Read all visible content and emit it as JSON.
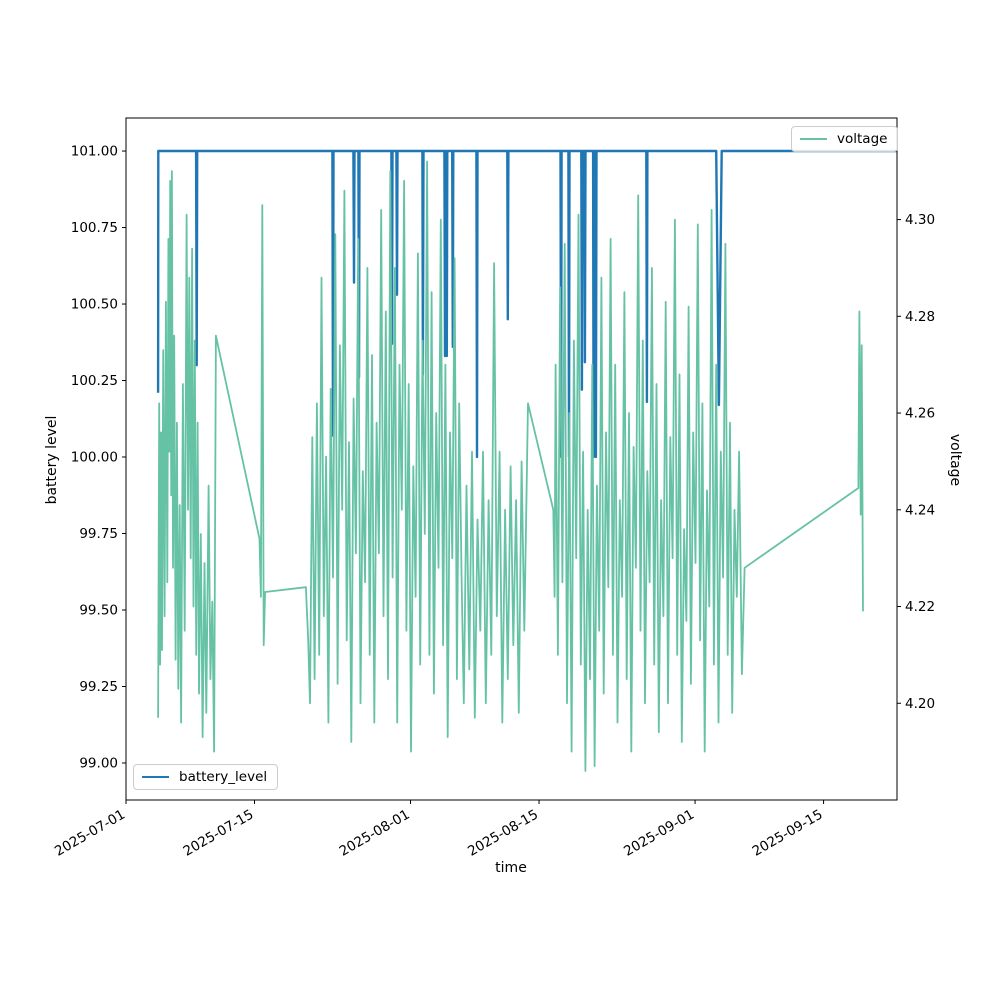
{
  "figure": {
    "background": "#ffffff"
  },
  "chart_data": {
    "type": "line",
    "title": "",
    "x_axis": {
      "label": "time",
      "unit": "days since 2025-07-01",
      "tick_positions": [
        0,
        14,
        31,
        45,
        62,
        76
      ],
      "tick_labels": [
        "2025-07-01",
        "2025-07-15",
        "2025-08-01",
        "2025-08-15",
        "2025-09-01",
        "2025-09-15"
      ],
      "range": [
        0,
        84
      ],
      "grid": false
    },
    "y_axis_left": {
      "label": "battery level",
      "tick_labels": [
        "99.00",
        "99.25",
        "99.50",
        "99.75",
        "100.00",
        "100.25",
        "100.50",
        "100.75",
        "101.00"
      ],
      "tick_values": [
        99.0,
        99.25,
        99.5,
        99.75,
        100.0,
        100.25,
        100.5,
        100.75,
        101.0
      ],
      "range": [
        98.879,
        101.108
      ]
    },
    "y_axis_right": {
      "label": "voltage",
      "tick_labels": [
        "4.20",
        "4.22",
        "4.24",
        "4.26",
        "4.28",
        "4.30"
      ],
      "tick_values": [
        4.2,
        4.22,
        4.24,
        4.26,
        4.28,
        4.3
      ],
      "range": [
        4.18,
        4.321
      ]
    },
    "series": [
      {
        "name": "battery_level",
        "color": "#1f77b4",
        "axis": "left",
        "line_width": 2.4,
        "legend_position": "lower-left",
        "points": [
          [
            3.5,
            100.21
          ],
          [
            3.52,
            101
          ],
          [
            7.64,
            101
          ],
          [
            7.7,
            100.3
          ],
          [
            7.76,
            101
          ],
          [
            22.49,
            101
          ],
          [
            22.55,
            100.07
          ],
          [
            22.61,
            101
          ],
          [
            24.78,
            101
          ],
          [
            24.84,
            100.57
          ],
          [
            24.9,
            101
          ],
          [
            25.32,
            101
          ],
          [
            25.38,
            100.26
          ],
          [
            25.44,
            101
          ],
          [
            28.92,
            101
          ],
          [
            28.98,
            100.37
          ],
          [
            29.04,
            101
          ],
          [
            29.46,
            101
          ],
          [
            29.52,
            100.53
          ],
          [
            29.58,
            101
          ],
          [
            32.29,
            101
          ],
          [
            32.35,
            100.27
          ],
          [
            32.41,
            101
          ],
          [
            34.69,
            101
          ],
          [
            34.75,
            100.33
          ],
          [
            34.81,
            101
          ],
          [
            34.89,
            101
          ],
          [
            34.95,
            100.33
          ],
          [
            35.01,
            101
          ],
          [
            35.54,
            101
          ],
          [
            35.6,
            100.36
          ],
          [
            35.66,
            101
          ],
          [
            38.18,
            101
          ],
          [
            38.24,
            100.0
          ],
          [
            38.3,
            101
          ],
          [
            41.54,
            101
          ],
          [
            41.6,
            100.45
          ],
          [
            41.66,
            101
          ],
          [
            47.34,
            101
          ],
          [
            47.4,
            100.0
          ],
          [
            47.46,
            101
          ],
          [
            48.2,
            101
          ],
          [
            48.26,
            100.0
          ],
          [
            48.32,
            101
          ],
          [
            49.61,
            101
          ],
          [
            49.67,
            100.22
          ],
          [
            49.73,
            101
          ],
          [
            49.94,
            101
          ],
          [
            50.0,
            100.31
          ],
          [
            50.06,
            101
          ],
          [
            50.89,
            101
          ],
          [
            50.95,
            100.0
          ],
          [
            51.01,
            101
          ],
          [
            51.14,
            101
          ],
          [
            51.2,
            100.0
          ],
          [
            51.26,
            101
          ],
          [
            56.69,
            101
          ],
          [
            56.75,
            100.18
          ],
          [
            56.81,
            101
          ],
          [
            64.3,
            101
          ],
          [
            64.6,
            100.17
          ],
          [
            64.9,
            101
          ],
          [
            84,
            101
          ]
        ]
      },
      {
        "name": "voltage",
        "color": "#66c2a5",
        "axis": "right",
        "line_width": 1.8,
        "legend_position": "upper-right",
        "points": [
          [
            3.5,
            4.197
          ],
          [
            3.62,
            4.262
          ],
          [
            3.72,
            4.208
          ],
          [
            3.82,
            4.256
          ],
          [
            3.92,
            4.211
          ],
          [
            4.05,
            4.273
          ],
          [
            4.2,
            4.218
          ],
          [
            4.35,
            4.283
          ],
          [
            4.5,
            4.225
          ],
          [
            4.62,
            4.296
          ],
          [
            4.72,
            4.252
          ],
          [
            4.82,
            4.308
          ],
          [
            4.92,
            4.243
          ],
          [
            5.0,
            4.31
          ],
          [
            5.12,
            4.228
          ],
          [
            5.25,
            4.276
          ],
          [
            5.4,
            4.209
          ],
          [
            5.55,
            4.258
          ],
          [
            5.7,
            4.203
          ],
          [
            5.85,
            4.241
          ],
          [
            6.0,
            4.196
          ],
          [
            6.2,
            4.266
          ],
          [
            6.4,
            4.215
          ],
          [
            6.6,
            4.301
          ],
          [
            6.75,
            4.24
          ],
          [
            6.9,
            4.288
          ],
          [
            7.05,
            4.23
          ],
          [
            7.2,
            4.294
          ],
          [
            7.35,
            4.22
          ],
          [
            7.5,
            4.275
          ],
          [
            7.65,
            4.21
          ],
          [
            7.8,
            4.258
          ],
          [
            7.95,
            4.202
          ],
          [
            8.15,
            4.235
          ],
          [
            8.35,
            4.193
          ],
          [
            8.55,
            4.229
          ],
          [
            8.75,
            4.198
          ],
          [
            9.0,
            4.245
          ],
          [
            9.2,
            4.205
          ],
          [
            9.4,
            4.221
          ],
          [
            9.6,
            4.19
          ],
          [
            9.8,
            4.276
          ],
          [
            14.55,
            4.234
          ],
          [
            14.7,
            4.222
          ],
          [
            14.85,
            4.303
          ],
          [
            15.0,
            4.212
          ],
          [
            15.15,
            4.223
          ],
          [
            19.6,
            4.224
          ],
          [
            19.85,
            4.213
          ],
          [
            20.05,
            4.2
          ],
          [
            20.3,
            4.255
          ],
          [
            20.55,
            4.205
          ],
          [
            20.8,
            4.262
          ],
          [
            21.05,
            4.21
          ],
          [
            21.3,
            4.288
          ],
          [
            21.55,
            4.218
          ],
          [
            21.8,
            4.251
          ],
          [
            22.05,
            4.196
          ],
          [
            22.3,
            4.265
          ],
          [
            22.55,
            4.226
          ],
          [
            22.8,
            4.297
          ],
          [
            23.05,
            4.204
          ],
          [
            23.3,
            4.274
          ],
          [
            23.55,
            4.24
          ],
          [
            23.8,
            4.306
          ],
          [
            24.05,
            4.213
          ],
          [
            24.3,
            4.254
          ],
          [
            24.55,
            4.192
          ],
          [
            24.8,
            4.263
          ],
          [
            25.05,
            4.231
          ],
          [
            25.3,
            4.296
          ],
          [
            25.55,
            4.2
          ],
          [
            25.8,
            4.248
          ],
          [
            26.05,
            4.225
          ],
          [
            26.3,
            4.29
          ],
          [
            26.55,
            4.21
          ],
          [
            26.8,
            4.272
          ],
          [
            27.05,
            4.196
          ],
          [
            27.3,
            4.258
          ],
          [
            27.55,
            4.231
          ],
          [
            27.8,
            4.302
          ],
          [
            28.05,
            4.218
          ],
          [
            28.3,
            4.281
          ],
          [
            28.55,
            4.205
          ],
          [
            28.8,
            4.31
          ],
          [
            29.05,
            4.226
          ],
          [
            29.3,
            4.29
          ],
          [
            29.55,
            4.196
          ],
          [
            29.8,
            4.27
          ],
          [
            30.05,
            4.24
          ],
          [
            30.3,
            4.308
          ],
          [
            30.55,
            4.215
          ],
          [
            30.8,
            4.266
          ],
          [
            31.05,
            4.19
          ],
          [
            31.3,
            4.249
          ],
          [
            31.55,
            4.222
          ],
          [
            31.8,
            4.293
          ],
          [
            32.05,
            4.208
          ],
          [
            32.3,
            4.275
          ],
          [
            32.55,
            4.235
          ],
          [
            32.8,
            4.312
          ],
          [
            33.05,
            4.21
          ],
          [
            33.3,
            4.285
          ],
          [
            33.55,
            4.202
          ],
          [
            33.8,
            4.26
          ],
          [
            34.05,
            4.228
          ],
          [
            34.3,
            4.3
          ],
          [
            34.55,
            4.212
          ],
          [
            34.8,
            4.27
          ],
          [
            35.05,
            4.193
          ],
          [
            35.3,
            4.256
          ],
          [
            35.55,
            4.23
          ],
          [
            35.8,
            4.292
          ],
          [
            36.05,
            4.205
          ],
          [
            36.3,
            4.262
          ],
          [
            36.55,
            4.227
          ],
          [
            36.8,
            4.2
          ],
          [
            37.1,
            4.245
          ],
          [
            37.4,
            4.207
          ],
          [
            37.7,
            4.252
          ],
          [
            38.0,
            4.197
          ],
          [
            38.3,
            4.238
          ],
          [
            38.6,
            4.215
          ],
          [
            38.9,
            4.252
          ],
          [
            39.2,
            4.2
          ],
          [
            39.5,
            4.242
          ],
          [
            39.8,
            4.21
          ],
          [
            40.1,
            4.291
          ],
          [
            40.4,
            4.218
          ],
          [
            40.7,
            4.252
          ],
          [
            41.0,
            4.196
          ],
          [
            41.3,
            4.24
          ],
          [
            41.6,
            4.205
          ],
          [
            41.9,
            4.249
          ],
          [
            42.2,
            4.212
          ],
          [
            42.5,
            4.242
          ],
          [
            42.8,
            4.198
          ],
          [
            43.1,
            4.25
          ],
          [
            43.4,
            4.215
          ],
          [
            43.8,
            4.262
          ],
          [
            46.55,
            4.24
          ],
          [
            46.7,
            4.222
          ],
          [
            46.8,
            4.27
          ],
          [
            47.05,
            4.21
          ],
          [
            47.3,
            4.286
          ],
          [
            47.55,
            4.225
          ],
          [
            47.8,
            4.295
          ],
          [
            48.05,
            4.2
          ],
          [
            48.3,
            4.26
          ],
          [
            48.55,
            4.19
          ],
          [
            48.8,
            4.275
          ],
          [
            49.05,
            4.23
          ],
          [
            49.3,
            4.301
          ],
          [
            49.55,
            4.208
          ],
          [
            49.8,
            4.252
          ],
          [
            50.05,
            4.186
          ],
          [
            50.3,
            4.24
          ],
          [
            50.55,
            4.205
          ],
          [
            50.8,
            4.27
          ],
          [
            51.05,
            4.187
          ],
          [
            51.3,
            4.245
          ],
          [
            51.55,
            4.215
          ],
          [
            51.8,
            4.288
          ],
          [
            52.05,
            4.202
          ],
          [
            52.3,
            4.256
          ],
          [
            52.55,
            4.224
          ],
          [
            52.8,
            4.296
          ],
          [
            53.05,
            4.21
          ],
          [
            53.3,
            4.27
          ],
          [
            53.55,
            4.196
          ],
          [
            53.8,
            4.242
          ],
          [
            54.05,
            4.222
          ],
          [
            54.3,
            4.285
          ],
          [
            54.55,
            4.205
          ],
          [
            54.8,
            4.26
          ],
          [
            55.05,
            4.19
          ],
          [
            55.3,
            4.253
          ],
          [
            55.55,
            4.228
          ],
          [
            55.8,
            4.305
          ],
          [
            56.05,
            4.215
          ],
          [
            56.3,
            4.275
          ],
          [
            56.55,
            4.2
          ],
          [
            56.8,
            4.248
          ],
          [
            57.05,
            4.225
          ],
          [
            57.3,
            4.29
          ],
          [
            57.55,
            4.208
          ],
          [
            57.8,
            4.266
          ],
          [
            58.05,
            4.194
          ],
          [
            58.3,
            4.242
          ],
          [
            58.55,
            4.218
          ],
          [
            58.8,
            4.283
          ],
          [
            59.05,
            4.2
          ],
          [
            59.3,
            4.255
          ],
          [
            59.55,
            4.23
          ],
          [
            59.8,
            4.3
          ],
          [
            60.05,
            4.21
          ],
          [
            60.3,
            4.268
          ],
          [
            60.55,
            4.192
          ],
          [
            60.8,
            4.236
          ],
          [
            61.05,
            4.217
          ],
          [
            61.3,
            4.282
          ],
          [
            61.55,
            4.204
          ],
          [
            61.8,
            4.256
          ],
          [
            62.05,
            4.229
          ],
          [
            62.3,
            4.299
          ],
          [
            62.55,
            4.213
          ],
          [
            62.8,
            4.262
          ],
          [
            63.05,
            4.19
          ],
          [
            63.3,
            4.244
          ],
          [
            63.55,
            4.22
          ],
          [
            63.8,
            4.302
          ],
          [
            64.05,
            4.208
          ],
          [
            64.3,
            4.27
          ],
          [
            64.55,
            4.196
          ],
          [
            64.8,
            4.252
          ],
          [
            65.05,
            4.226
          ],
          [
            65.3,
            4.295
          ],
          [
            65.55,
            4.21
          ],
          [
            65.8,
            4.258
          ],
          [
            66.05,
            4.198
          ],
          [
            66.3,
            4.24
          ],
          [
            66.55,
            4.222
          ],
          [
            66.8,
            4.252
          ],
          [
            67.1,
            4.206
          ],
          [
            67.4,
            4.228
          ],
          [
            79.8,
            4.2445
          ],
          [
            79.9,
            4.281
          ],
          [
            80.05,
            4.239
          ],
          [
            80.15,
            4.274
          ],
          [
            80.3,
            4.219
          ]
        ]
      }
    ],
    "legend_entries": [
      {
        "label": "battery_level",
        "color": "#1f77b4"
      },
      {
        "label": "voltage",
        "color": "#66c2a5"
      }
    ]
  }
}
